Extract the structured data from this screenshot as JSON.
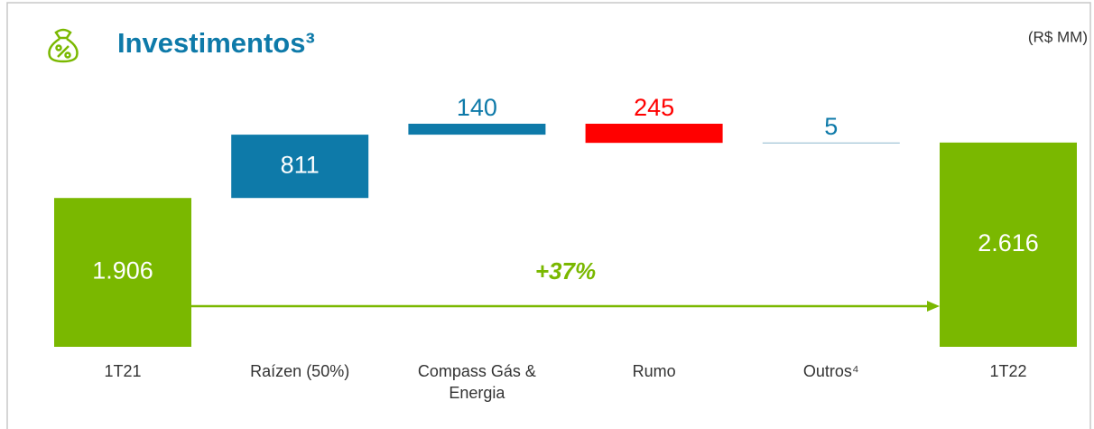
{
  "chart_data": {
    "type": "waterfall",
    "title": "Investimentos³",
    "subtitle": "(R$ MM)",
    "annotation": "+37%",
    "categories": [
      "1T21",
      "Raízen  (50%)",
      "Compass Gás & Energia",
      "Rumo",
      "Outros⁴",
      "1T22"
    ],
    "values": [
      1906,
      811,
      140,
      -245,
      5,
      2616
    ],
    "value_labels": [
      "1.906",
      "811",
      "140",
      "245",
      "5",
      "2.616"
    ],
    "measures": [
      "total",
      "relative",
      "relative",
      "relative",
      "relative",
      "total"
    ],
    "colors": [
      "#7ab800",
      "#0e7aa9",
      "#0e7aa9",
      "#ff0000",
      "#9fc3d6",
      "#7ab800"
    ]
  }
}
